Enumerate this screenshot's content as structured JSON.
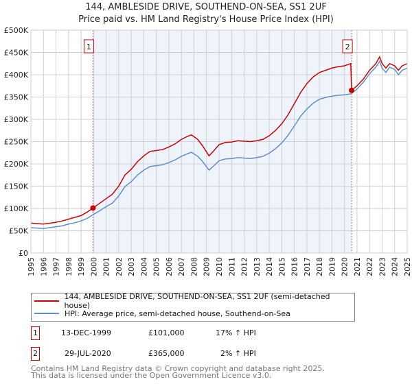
{
  "chart_data": {
    "type": "line",
    "title": "144, AMBLESIDE DRIVE, SOUTHEND-ON-SEA, SS1 2UF",
    "subtitle": "Price paid vs. HM Land Registry's House Price Index (HPI)",
    "xlim": [
      1995,
      2025
    ],
    "ylim": [
      0,
      500000
    ],
    "x_ticks": [
      "1995",
      "1996",
      "1997",
      "1998",
      "1999",
      "2000",
      "2001",
      "2002",
      "2003",
      "2004",
      "2005",
      "2006",
      "2007",
      "2008",
      "2009",
      "2010",
      "2011",
      "2012",
      "2013",
      "2014",
      "2015",
      "2016",
      "2017",
      "2018",
      "2019",
      "2020",
      "2021",
      "2022",
      "2023",
      "2024",
      "2025"
    ],
    "y_ticks": [
      {
        "v": 0,
        "l": "£0"
      },
      {
        "v": 50000,
        "l": "£50K"
      },
      {
        "v": 100000,
        "l": "£100K"
      },
      {
        "v": 150000,
        "l": "£150K"
      },
      {
        "v": 200000,
        "l": "£200K"
      },
      {
        "v": 250000,
        "l": "£250K"
      },
      {
        "v": 300000,
        "l": "£300K"
      },
      {
        "v": 350000,
        "l": "£350K"
      },
      {
        "v": 400000,
        "l": "£400K"
      },
      {
        "v": 450000,
        "l": "£450K"
      },
      {
        "v": 500000,
        "l": "£500K"
      }
    ],
    "grid": true,
    "series": [
      {
        "name": "144, AMBLESIDE DRIVE, SOUTHEND-ON-SEA, SS1 2UF (semi-detached house)",
        "color": "#cc0000",
        "x": [
          1995,
          1995.5,
          1996,
          1996.5,
          1997,
          1997.5,
          1998,
          1998.5,
          1999,
          1999.5,
          1999.95,
          2000.5,
          2001,
          2001.5,
          2002,
          2002.5,
          2003,
          2003.5,
          2004,
          2004.5,
          2005,
          2005.5,
          2006,
          2006.5,
          2007,
          2007.5,
          2007.8,
          2008.3,
          2008.7,
          2009.2,
          2009.6,
          2010,
          2010.5,
          2011,
          2011.5,
          2012,
          2012.5,
          2013,
          2013.5,
          2014,
          2014.5,
          2015,
          2015.5,
          2016,
          2016.5,
          2017,
          2017.5,
          2018,
          2018.5,
          2019,
          2019.5,
          2020,
          2020.5,
          2020.57,
          2021,
          2021.5,
          2022,
          2022.5,
          2022.8,
          2023,
          2023.3,
          2023.6,
          2024,
          2024.3,
          2024.6,
          2025
        ],
        "y": [
          67000,
          66000,
          65000,
          67000,
          69000,
          72000,
          76000,
          80000,
          84000,
          92000,
          101000,
          112000,
          122000,
          132000,
          150000,
          175000,
          188000,
          205000,
          218000,
          228000,
          230000,
          232000,
          238000,
          245000,
          255000,
          262000,
          265000,
          255000,
          240000,
          218000,
          230000,
          243000,
          248000,
          249000,
          252000,
          251000,
          250000,
          252000,
          255000,
          263000,
          275000,
          290000,
          310000,
          335000,
          360000,
          380000,
          395000,
          405000,
          410000,
          415000,
          418000,
          420000,
          425000,
          365000,
          375000,
          390000,
          410000,
          425000,
          440000,
          425000,
          415000,
          425000,
          420000,
          410000,
          420000,
          425000
        ]
      },
      {
        "name": "HPI: Average price, semi-detached house, Southend-on-Sea",
        "color": "#5b8fd0",
        "x": [
          1995,
          1995.5,
          1996,
          1996.5,
          1997,
          1997.5,
          1998,
          1998.5,
          1999,
          1999.5,
          1999.95,
          2000.5,
          2001,
          2001.5,
          2002,
          2002.5,
          2003,
          2003.5,
          2004,
          2004.5,
          2005,
          2005.5,
          2006,
          2006.5,
          2007,
          2007.5,
          2007.8,
          2008.3,
          2008.7,
          2009.2,
          2009.6,
          2010,
          2010.5,
          2011,
          2011.5,
          2012,
          2012.5,
          2013,
          2013.5,
          2014,
          2014.5,
          2015,
          2015.5,
          2016,
          2016.5,
          2017,
          2017.5,
          2018,
          2018.5,
          2019,
          2019.5,
          2020,
          2020.5,
          2020.57,
          2021,
          2021.5,
          2022,
          2022.5,
          2022.8,
          2023,
          2023.3,
          2023.6,
          2024,
          2024.3,
          2024.6,
          2025
        ],
        "y": [
          57000,
          56000,
          55000,
          57000,
          59000,
          61000,
          65000,
          68000,
          72000,
          78000,
          86000,
          95000,
          104000,
          112000,
          128000,
          149000,
          160000,
          175000,
          186000,
          194000,
          196000,
          198000,
          203000,
          209000,
          217000,
          223000,
          226000,
          217000,
          205000,
          186000,
          196000,
          207000,
          211000,
          212000,
          214000,
          213000,
          212000,
          214000,
          217000,
          224000,
          234000,
          247000,
          264000,
          285000,
          307000,
          323000,
          336000,
          345000,
          349000,
          352000,
          354000,
          355000,
          357000,
          358000,
          368000,
          383000,
          402000,
          417000,
          430000,
          415000,
          405000,
          417000,
          412000,
          400000,
          410000,
          415000
        ]
      }
    ],
    "annotations": [
      {
        "label": "1",
        "x": 1999.95,
        "value": 101000
      },
      {
        "label": "2",
        "x": 2020.57,
        "value": 365000
      }
    ]
  },
  "legend": {
    "items": [
      "144, AMBLESIDE DRIVE, SOUTHEND-ON-SEA, SS1 2UF (semi-detached house)",
      "HPI: Average price, semi-detached house, Southend-on-Sea"
    ]
  },
  "transactions": [
    {
      "num": "1",
      "date": "13-DEC-1999",
      "price": "£101,000",
      "hpi": "17% ↑ HPI"
    },
    {
      "num": "2",
      "date": "29-JUL-2020",
      "price": "£365,000",
      "hpi": "2% ↑ HPI"
    }
  ],
  "footer": [
    "Contains HM Land Registry data © Crown copyright and database right 2025.",
    "This data is licensed under the Open Government Licence v3.0."
  ]
}
